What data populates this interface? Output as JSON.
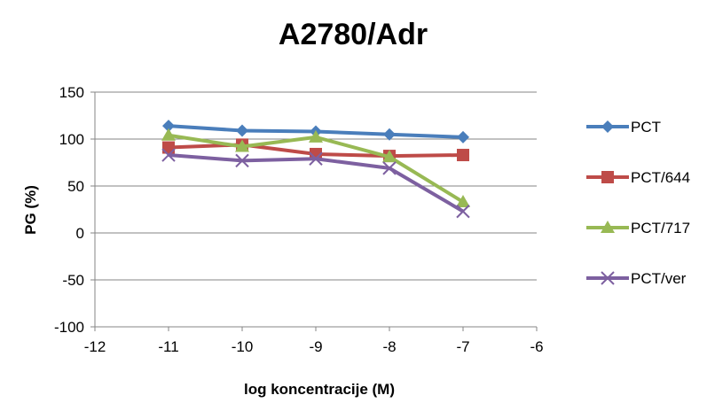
{
  "chart_data": {
    "type": "line",
    "title": "A2780/Adr",
    "xlabel": "log koncentracije (M)",
    "ylabel": "PG (%)",
    "xlim": [
      -12,
      -6
    ],
    "ylim": [
      -100,
      150
    ],
    "xticks": [
      -12,
      -11,
      -10,
      -9,
      -8,
      -7,
      -6
    ],
    "yticks": [
      -100,
      -50,
      0,
      50,
      100,
      150
    ],
    "grid": "horizontal",
    "legend_position": "right",
    "x": [
      -11,
      -10,
      -9,
      -8,
      -7
    ],
    "series": [
      {
        "name": "PCT",
        "values": [
          114,
          109,
          108,
          105,
          102
        ],
        "color": "#4a7ebb",
        "marker": "diamond"
      },
      {
        "name": "PCT/644",
        "values": [
          91,
          94,
          84,
          82,
          83
        ],
        "color": "#be4b48",
        "marker": "square"
      },
      {
        "name": "PCT/717",
        "values": [
          104,
          92,
          102,
          81,
          33
        ],
        "color": "#98b954",
        "marker": "triangle"
      },
      {
        "name": "PCT/ver",
        "values": [
          83,
          77,
          79,
          69,
          23
        ],
        "color": "#7d60a0",
        "marker": "x"
      }
    ]
  }
}
